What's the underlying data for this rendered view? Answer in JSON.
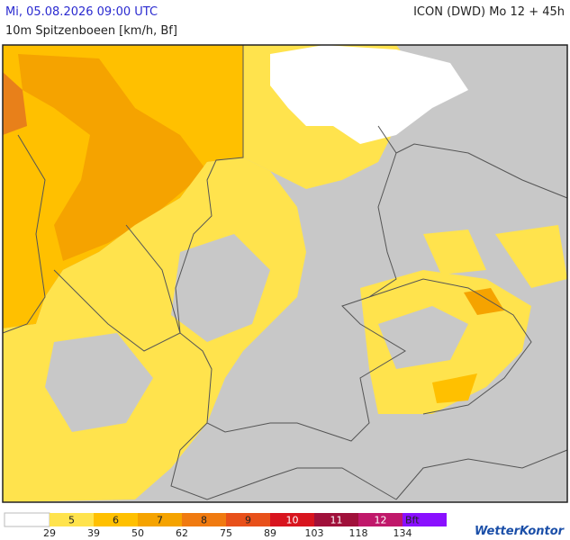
{
  "header": {
    "time": "Mi, 05.08.2026 09:00 UTC",
    "model": "ICON (DWD) Mo 12 + 45h",
    "parameter": "10m Spitzenboeen [km/h, Bf]"
  },
  "legend": {
    "classes": [
      {
        "label": "5",
        "color": "#ffe34d"
      },
      {
        "label": "6",
        "color": "#ffc000"
      },
      {
        "label": "7",
        "color": "#f5a300"
      },
      {
        "label": "8",
        "color": "#f07a10"
      },
      {
        "label": "9",
        "color": "#e8501a"
      },
      {
        "label": "10",
        "color": "#d8141e"
      },
      {
        "label": "11",
        "color": "#a0103a"
      },
      {
        "label": "12",
        "color": "#c0186a"
      },
      {
        "label": "Bft",
        "color": "#8a10ff"
      }
    ],
    "thresholds": [
      29,
      39,
      50,
      62,
      75,
      89,
      103,
      118,
      134
    ]
  },
  "footer": {
    "logo": "WetterKontor"
  }
}
